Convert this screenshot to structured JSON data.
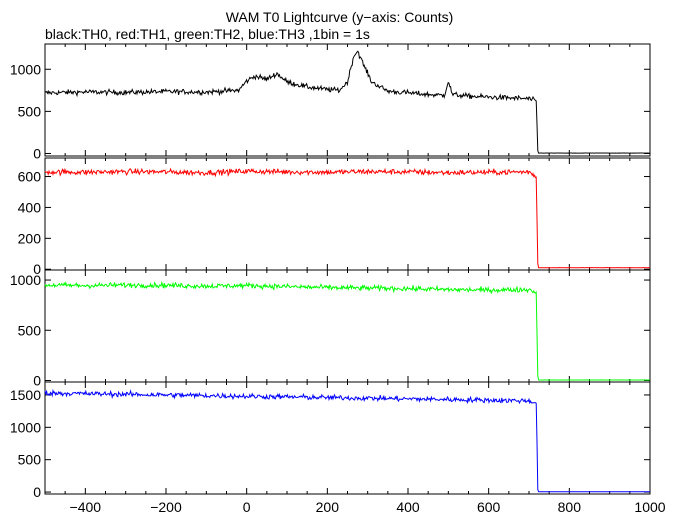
{
  "chart_data": {
    "type": "line",
    "title": "WAM T0 Lightcurve (y−axis: Counts)",
    "subtitle": "black:TH0, red:TH1, green:TH2, blue:TH3 ,1bin = 1s",
    "xlim": [
      -500,
      1000
    ],
    "x_ticks": [
      -400,
      -200,
      0,
      200,
      400,
      600,
      800,
      1000
    ],
    "x_tick_labels": [
      "−400",
      "−200",
      "0",
      "200",
      "400",
      "600",
      "800",
      "1000"
    ],
    "grid": false,
    "panels": [
      {
        "name": "TH0",
        "color": "#000000",
        "ylim": [
          -30,
          1300
        ],
        "y_ticks": [
          0,
          500,
          1000
        ],
        "x": [
          -500,
          -400,
          -300,
          -200,
          -100,
          -20,
          0,
          20,
          50,
          75,
          100,
          150,
          200,
          230,
          250,
          265,
          275,
          290,
          310,
          350,
          400,
          450,
          490,
          500,
          510,
          550,
          600,
          650,
          700,
          718,
          722,
          730,
          800,
          900,
          1000
        ],
        "values": [
          720,
          730,
          725,
          735,
          730,
          750,
          860,
          920,
          880,
          950,
          850,
          790,
          760,
          750,
          850,
          1150,
          1220,
          1050,
          850,
          740,
          720,
          700,
          690,
          860,
          700,
          680,
          670,
          660,
          650,
          620,
          5,
          5,
          5,
          5,
          5
        ]
      },
      {
        "name": "TH1",
        "color": "#ff0000",
        "ylim": [
          -5,
          720
        ],
        "y_ticks": [
          0,
          200,
          400,
          600
        ],
        "x": [
          -500,
          -400,
          -300,
          -200,
          -100,
          0,
          100,
          200,
          300,
          400,
          500,
          600,
          700,
          718,
          722,
          730,
          800,
          900,
          1000
        ],
        "values": [
          630,
          628,
          632,
          630,
          625,
          635,
          630,
          628,
          632,
          630,
          625,
          628,
          630,
          600,
          10,
          10,
          10,
          10,
          10
        ]
      },
      {
        "name": "TH2",
        "color": "#00ff00",
        "ylim": [
          -15,
          1100
        ],
        "y_ticks": [
          0,
          500,
          1000
        ],
        "x": [
          -500,
          -400,
          -300,
          -200,
          -100,
          0,
          100,
          200,
          300,
          400,
          500,
          600,
          700,
          718,
          722,
          730,
          800,
          900,
          1000
        ],
        "values": [
          950,
          945,
          950,
          948,
          940,
          945,
          935,
          925,
          920,
          915,
          905,
          900,
          905,
          880,
          5,
          5,
          5,
          5,
          5
        ]
      },
      {
        "name": "TH3",
        "color": "#0000ff",
        "ylim": [
          -30,
          1700
        ],
        "y_ticks": [
          0,
          500,
          1000,
          1500
        ],
        "x": [
          -500,
          -400,
          -300,
          -200,
          -100,
          0,
          100,
          200,
          300,
          400,
          500,
          600,
          700,
          718,
          722,
          730,
          800,
          900,
          1000
        ],
        "values": [
          1530,
          1520,
          1510,
          1500,
          1490,
          1480,
          1470,
          1460,
          1450,
          1440,
          1430,
          1420,
          1410,
          1380,
          5,
          5,
          5,
          5,
          5
        ]
      }
    ]
  }
}
